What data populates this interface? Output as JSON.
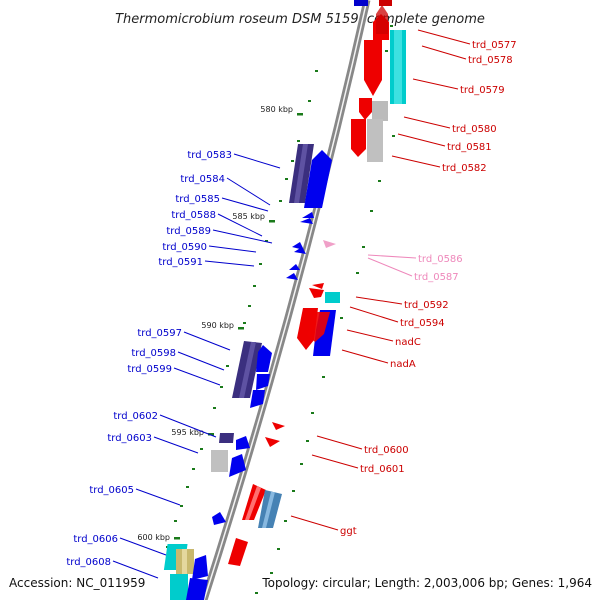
{
  "title": "Thermomicrobium roseum DSM 5159, complete genome",
  "footer": {
    "accession": "Accession: NC_011959",
    "summary": "Topology: circular; Length: 2,003,006 bp; Genes: 1,964"
  },
  "ruler_labels": [
    "580 kbp",
    "585 kbp",
    "590 kbp",
    "595 kbp",
    "600 kbp"
  ],
  "colors": {
    "backbone": "#808080",
    "forward_label": "#0000cc",
    "reverse_label": "#cc0000",
    "light_label": "#ee88bb",
    "tick": "#006600"
  },
  "genes_left": [
    "trd_0583",
    "trd_0584",
    "trd_0585",
    "trd_0588",
    "trd_0589",
    "trd_0590",
    "trd_0591",
    "trd_0597",
    "trd_0598",
    "trd_0599",
    "trd_0602",
    "trd_0603",
    "trd_0605",
    "trd_0606",
    "trd_0608"
  ],
  "genes_right": [
    "trd_0577",
    "trd_0578",
    "trd_0579",
    "trd_0580",
    "trd_0581",
    "trd_0582",
    "trd_0586",
    "trd_0587",
    "trd_0592",
    "trd_0594",
    "nadC",
    "nadA",
    "trd_0600",
    "trd_0601",
    "ggt"
  ]
}
